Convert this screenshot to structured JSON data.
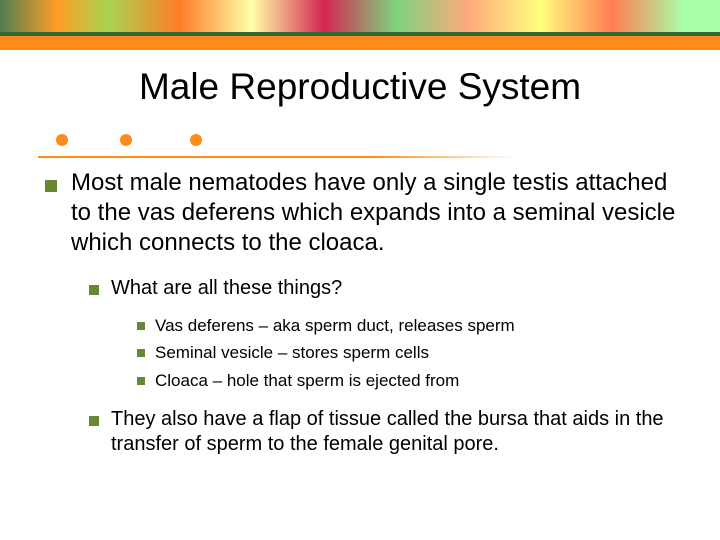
{
  "colors": {
    "bullet": "#668833",
    "accent": "#ff8c1a",
    "green_line": "#336633",
    "text": "#000000",
    "background": "#ffffff"
  },
  "typography": {
    "title_fontsize": 37,
    "level1_fontsize": 24,
    "level2_fontsize": 20,
    "level3_fontsize": 17,
    "font_family": "Verdana"
  },
  "title": "Male Reproductive System",
  "bullets": {
    "level1": "Most male nematodes have only a single testis attached to the vas deferens which expands into a seminal vesicle which connects to the cloaca.",
    "level2_a": "What are all these things?",
    "level3_a": "Vas deferens – aka sperm duct, releases sperm",
    "level3_b": "Seminal vesicle – stores sperm cells",
    "level3_c": "Cloaca – hole that sperm is ejected from",
    "level2_b": "They also have a flap of tissue called the bursa that aids in the transfer of sperm to the female genital pore."
  }
}
